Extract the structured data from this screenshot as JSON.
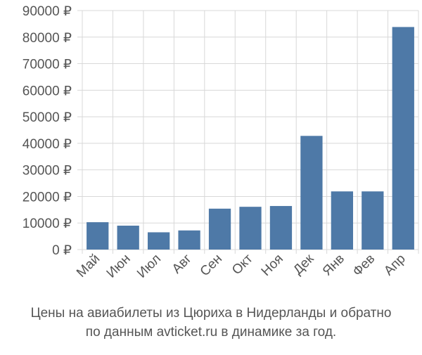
{
  "chart_data": {
    "type": "bar",
    "categories": [
      "Май",
      "Июн",
      "Июл",
      "Авг",
      "Сен",
      "Окт",
      "Ноя",
      "Дек",
      "Янв",
      "Фев",
      "Апр"
    ],
    "values": [
      10300,
      9000,
      6500,
      7200,
      15400,
      16100,
      16400,
      42800,
      21900,
      21900,
      83800
    ],
    "ylim": [
      0,
      90000
    ],
    "yticks": [
      0,
      10000,
      20000,
      30000,
      40000,
      50000,
      60000,
      70000,
      80000,
      90000
    ],
    "ytick_labels": [
      "0 ₽",
      "10000 ₽",
      "20000 ₽",
      "30000 ₽",
      "40000 ₽",
      "50000 ₽",
      "60000 ₽",
      "70000 ₽",
      "80000 ₽",
      "90000 ₽"
    ],
    "title": "Цены на авиабилеты из Цюриха в Нидерланды и обратно",
    "subtitle": "по данным avticket.ru в динамике за год.",
    "xlabel": "",
    "ylabel": "",
    "grid": true,
    "bar_color": "#4e79a7"
  }
}
